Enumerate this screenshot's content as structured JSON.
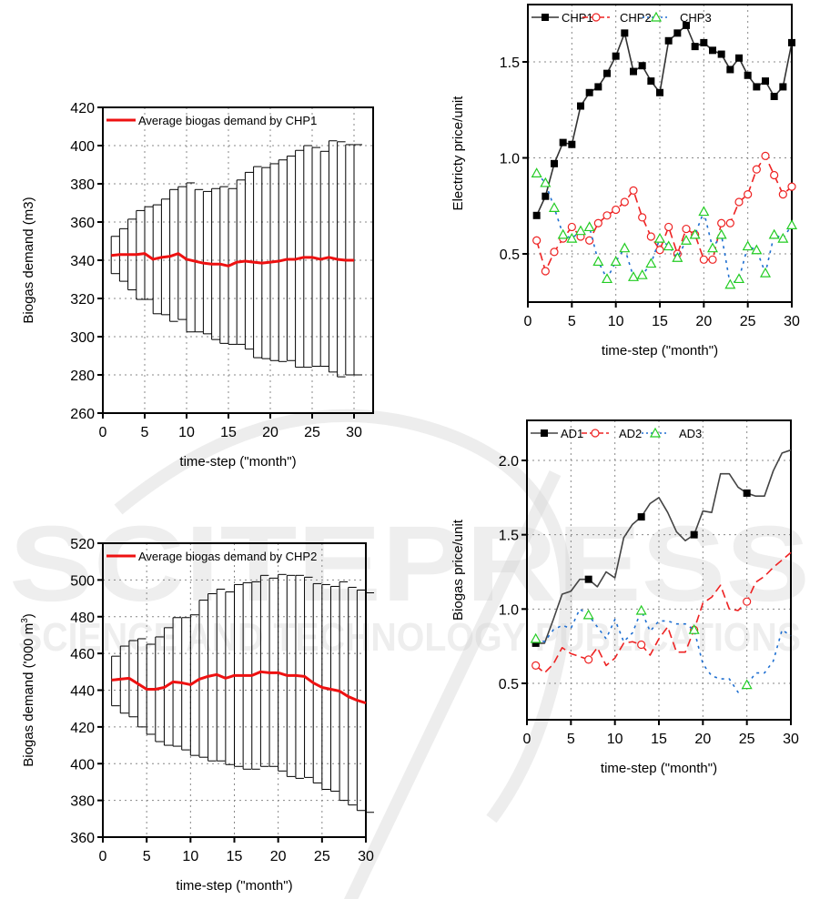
{
  "watermark": {
    "main": "SCITEPRESS",
    "sub": "SCIENCE AND TECHNOLOGY PUBLICATIONS"
  },
  "chart_data": [
    {
      "id": "chp1-demand",
      "type": "line",
      "title": "",
      "xlabel": "time-step (\"month\")",
      "ylabel": "Biogas demand (m3)",
      "xlim": [
        0,
        32
      ],
      "ylim": [
        260,
        420
      ],
      "xticks": [
        0,
        5,
        10,
        15,
        20,
        25,
        30
      ],
      "yticks": [
        260,
        280,
        300,
        320,
        340,
        360,
        380,
        400,
        420
      ],
      "grid": true,
      "legend": {
        "position": "top-left",
        "entries": [
          "Average biogas demand by CHP1"
        ]
      },
      "x": [
        1,
        2,
        3,
        4,
        5,
        6,
        7,
        8,
        9,
        10,
        11,
        12,
        13,
        14,
        15,
        16,
        17,
        18,
        19,
        20,
        21,
        22,
        23,
        24,
        25,
        26,
        27,
        28,
        29,
        30
      ],
      "series": [
        {
          "name": "Average biogas demand by CHP1",
          "color": "#ee1111",
          "values": [
            342.5,
            343,
            343,
            343,
            343.5,
            340.5,
            341.5,
            342,
            343.5,
            340.5,
            339.5,
            338.5,
            338,
            338,
            337,
            339,
            339.5,
            339,
            338.5,
            339,
            339.5,
            340.5,
            340.5,
            341.5,
            341.5,
            340.5,
            341.5,
            340.5,
            340,
            340
          ],
          "error_upper": [
            352.5,
            356.5,
            361.5,
            366,
            368,
            369,
            372,
            377,
            378.5,
            380.5,
            377,
            376,
            377.5,
            378.5,
            377.5,
            382,
            386,
            389,
            388.5,
            390.5,
            392.5,
            394.5,
            397.5,
            400,
            399,
            397,
            402.5,
            402,
            400.5,
            400.5
          ],
          "error_lower": [
            333,
            329,
            324.5,
            319.5,
            319.5,
            312,
            311.5,
            308,
            309,
            302.5,
            302.5,
            301.5,
            298.5,
            296.5,
            296,
            296,
            293.5,
            289,
            288.5,
            287.5,
            287,
            287.5,
            284,
            284,
            284.5,
            284.5,
            281.5,
            279,
            280,
            280
          ]
        }
      ]
    },
    {
      "id": "chp2-demand",
      "type": "line",
      "title": "",
      "xlabel": "time-step (\"month\")",
      "ylabel": "Biogas demand ('000 m",
      "ylabel_superscript": "3",
      "ylabel_suffix": ")",
      "xlim": [
        0,
        30
      ],
      "ylim": [
        360,
        520
      ],
      "xticks": [
        0,
        5,
        10,
        15,
        20,
        25,
        30
      ],
      "yticks": [
        360,
        380,
        400,
        420,
        440,
        460,
        480,
        500,
        520
      ],
      "grid": true,
      "legend": {
        "position": "top-left",
        "entries": [
          "Average biogas demand by CHP2"
        ]
      },
      "x": [
        1,
        2,
        3,
        4,
        5,
        6,
        7,
        8,
        9,
        10,
        11,
        12,
        13,
        14,
        15,
        16,
        17,
        18,
        19,
        20,
        21,
        22,
        23,
        24,
        25,
        26,
        27,
        28,
        29,
        30
      ],
      "series": [
        {
          "name": "Average biogas demand by CHP2",
          "color": "#ee1111",
          "values": [
            445.5,
            446,
            446.5,
            443.5,
            440.5,
            440.5,
            441.5,
            444.5,
            444,
            443,
            446,
            447.5,
            448.5,
            446.5,
            448,
            448,
            448,
            450,
            449.5,
            449.5,
            448,
            448,
            447.5,
            444,
            441.5,
            440.5,
            439.5,
            436.5,
            434.5,
            433
          ],
          "error_upper": [
            458.5,
            464,
            467,
            468,
            465,
            469,
            474,
            479.5,
            479.5,
            481,
            489,
            492.5,
            495,
            493.5,
            497.5,
            498.5,
            499,
            502.5,
            501,
            503,
            502.5,
            502.5,
            501.5,
            498,
            497.5,
            496.5,
            499,
            496,
            494.5,
            493
          ],
          "error_lower": [
            431.5,
            427.5,
            425.5,
            420,
            416,
            412,
            410,
            409.5,
            407.5,
            404.5,
            403.5,
            401.5,
            401.5,
            399.5,
            398.5,
            397,
            397,
            398.5,
            398.5,
            396,
            393,
            392,
            392.5,
            389.5,
            386,
            385,
            380,
            377.5,
            374.5,
            373.5
          ]
        }
      ]
    },
    {
      "id": "electricity-price",
      "type": "line",
      "title": "",
      "xlabel": "time-step (\"month\")",
      "ylabel": "Electricty price/unit",
      "xlim": [
        0,
        30
      ],
      "ylim": [
        0.25,
        1.79
      ],
      "xticks": [
        0,
        5,
        10,
        15,
        20,
        25,
        30
      ],
      "yticks": [
        0.5,
        1.0,
        1.5
      ],
      "ytick_labels": [
        "0.5",
        "1.0",
        "1.5"
      ],
      "grid": true,
      "legend": {
        "position": "top-left",
        "entries": [
          "CHP1",
          "CHP2",
          "CHP3"
        ]
      },
      "x": [
        1,
        2,
        3,
        4,
        5,
        6,
        7,
        8,
        9,
        10,
        11,
        12,
        13,
        14,
        15,
        16,
        17,
        18,
        19,
        20,
        21,
        22,
        23,
        24,
        25,
        26,
        27,
        28,
        29,
        30
      ],
      "series": [
        {
          "name": "CHP1",
          "color": "#333333",
          "marker": "square",
          "line": "solid",
          "values": [
            0.7,
            0.8,
            0.97,
            1.08,
            1.07,
            1.27,
            1.34,
            1.37,
            1.44,
            1.53,
            1.65,
            1.45,
            1.48,
            1.4,
            1.34,
            1.61,
            1.65,
            1.69,
            1.58,
            1.6,
            1.56,
            1.54,
            1.46,
            1.52,
            1.43,
            1.37,
            1.4,
            1.32,
            1.37,
            1.6
          ]
        },
        {
          "name": "CHP2",
          "color": "#ee2222",
          "marker": "circle",
          "line": "dashed",
          "values": [
            0.57,
            0.41,
            0.51,
            0.58,
            0.64,
            0.59,
            0.57,
            0.66,
            0.7,
            0.73,
            0.77,
            0.83,
            0.69,
            0.59,
            0.52,
            0.64,
            0.5,
            0.63,
            0.6,
            0.47,
            0.47,
            0.66,
            0.66,
            0.77,
            0.81,
            0.94,
            1.01,
            0.91,
            0.81,
            0.85
          ]
        },
        {
          "name": "CHP3",
          "color": "#1f6fd1",
          "marker": "triangle",
          "marker_color": "#22cc22",
          "line": "dotted",
          "values": [
            0.92,
            0.87,
            0.74,
            0.6,
            0.58,
            0.62,
            0.64,
            0.46,
            0.37,
            0.46,
            0.53,
            0.38,
            0.39,
            0.45,
            0.58,
            0.54,
            0.48,
            0.57,
            0.6,
            0.72,
            0.53,
            0.6,
            0.34,
            0.37,
            0.54,
            0.52,
            0.4,
            0.6,
            0.58,
            0.65
          ]
        }
      ]
    },
    {
      "id": "biogas-price",
      "type": "line",
      "title": "",
      "xlabel": "time-step (\"month\")",
      "ylabel": "Biogas price/unit",
      "xlim": [
        0,
        30
      ],
      "ylim": [
        0.25,
        2.27
      ],
      "xticks": [
        0,
        5,
        10,
        15,
        20,
        25,
        30
      ],
      "yticks": [
        0.5,
        1.0,
        1.5,
        2.0
      ],
      "ytick_labels": [
        "0.5",
        "1.0",
        "1.5",
        "2.0"
      ],
      "grid": true,
      "legend": {
        "position": "top-left",
        "entries": [
          "AD1",
          "AD2",
          "AD3"
        ]
      },
      "x": [
        1,
        2,
        3,
        4,
        5,
        6,
        7,
        8,
        9,
        10,
        11,
        12,
        13,
        14,
        15,
        16,
        17,
        18,
        19,
        20,
        21,
        22,
        23,
        24,
        25,
        26,
        27,
        28,
        29,
        30
      ],
      "marker_every": [
        1,
        7,
        13,
        19,
        25
      ],
      "series": [
        {
          "name": "AD1",
          "color": "#444444",
          "marker": "square",
          "line": "solid",
          "values": [
            0.77,
            0.77,
            0.93,
            1.1,
            1.12,
            1.2,
            1.2,
            1.15,
            1.25,
            1.21,
            1.48,
            1.57,
            1.62,
            1.71,
            1.75,
            1.65,
            1.52,
            1.46,
            1.5,
            1.66,
            1.65,
            1.91,
            1.91,
            1.82,
            1.78,
            1.76,
            1.76,
            1.93,
            2.05,
            2.07
          ]
        },
        {
          "name": "AD2",
          "color": "#ee2222",
          "marker": "circle",
          "line": "dashed",
          "values": [
            0.62,
            0.57,
            0.63,
            0.74,
            0.7,
            0.68,
            0.66,
            0.74,
            0.62,
            0.67,
            0.77,
            0.78,
            0.76,
            0.69,
            0.8,
            0.88,
            0.71,
            0.71,
            0.86,
            1.04,
            1.08,
            1.16,
            1.0,
            0.99,
            1.05,
            1.18,
            1.22,
            1.28,
            1.33,
            1.38
          ]
        },
        {
          "name": "AD3",
          "color": "#1f6fd1",
          "marker": "triangle",
          "marker_color": "#22cc22",
          "line": "dotted",
          "values": [
            0.8,
            0.78,
            0.86,
            0.89,
            0.87,
            1.0,
            0.96,
            0.88,
            0.8,
            0.93,
            0.78,
            0.84,
            0.99,
            0.85,
            0.92,
            0.92,
            0.9,
            0.9,
            0.86,
            0.63,
            0.55,
            0.53,
            0.53,
            0.44,
            0.49,
            0.57,
            0.57,
            0.65,
            0.86,
            0.82
          ]
        }
      ]
    }
  ]
}
